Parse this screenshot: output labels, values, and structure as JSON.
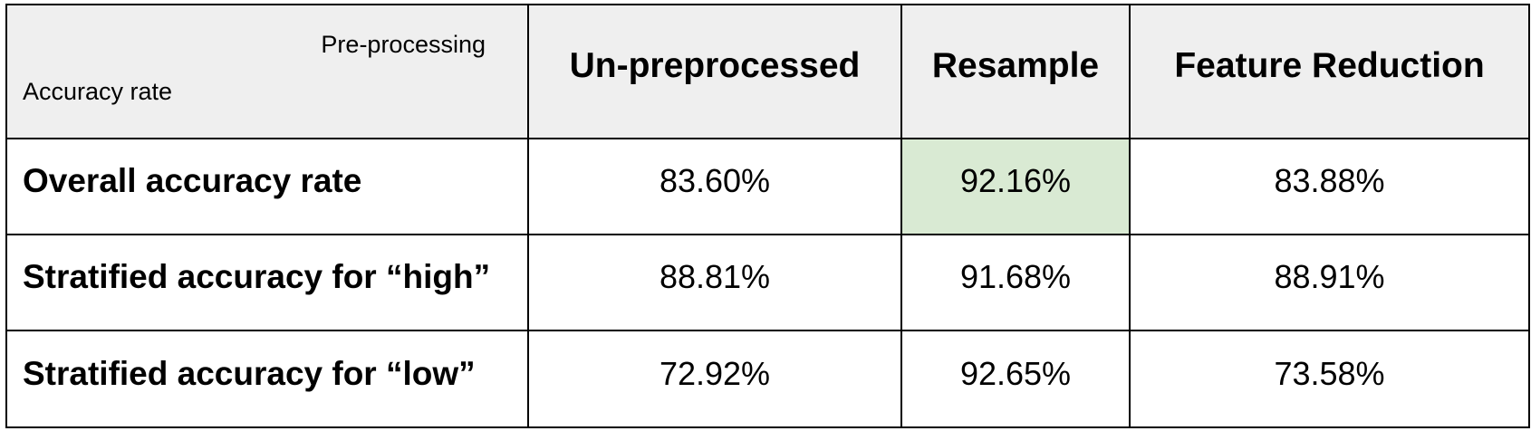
{
  "table": {
    "corner": {
      "column_axis_label": "Pre-processing",
      "row_axis_label": "Accuracy rate"
    },
    "columns": [
      "Un-preprocessed",
      "Resample",
      "Feature Reduction"
    ],
    "rows": [
      {
        "label": "Overall accuracy rate",
        "values": [
          "83.60%",
          "92.16%",
          "83.88%"
        ]
      },
      {
        "label": "Stratified accuracy for “high”",
        "values": [
          "88.81%",
          "91.68%",
          "88.91%"
        ]
      },
      {
        "label": "Stratified accuracy for “low”",
        "values": [
          "72.92%",
          "92.65%",
          "73.58%"
        ]
      }
    ],
    "highlight": {
      "row": 0,
      "column": 1,
      "color": "#d9ead3"
    },
    "header_background": "#efefef"
  }
}
